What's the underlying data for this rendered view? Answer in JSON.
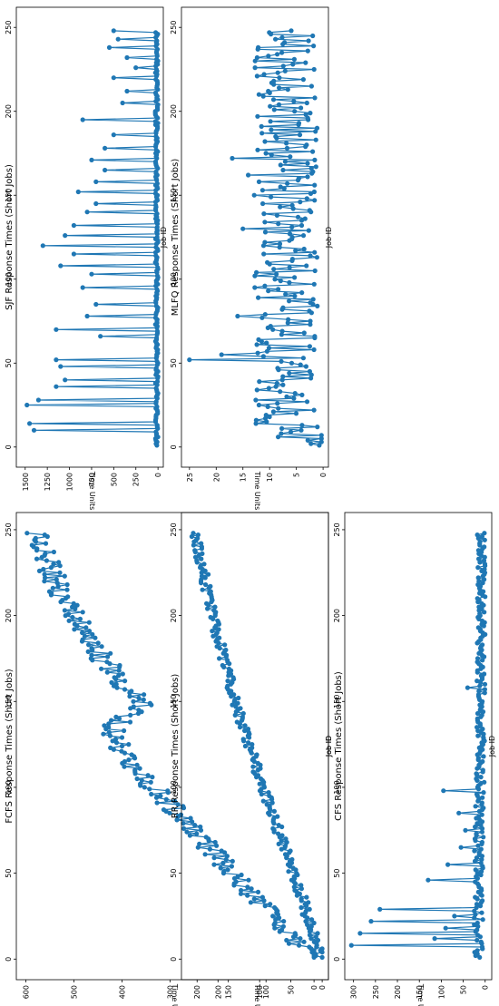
{
  "chart_data": [
    {
      "id": "fcfs",
      "type": "line",
      "title": "FCFS Response Times (Short Jobs)",
      "xlabel": "Job ID",
      "ylabel": "Time Units",
      "xlim": [
        -12,
        260
      ],
      "ylim": [
        -30,
        620
      ],
      "xticks": [
        0,
        50,
        100,
        150,
        200,
        250
      ],
      "yticks": [
        0,
        100,
        200,
        300,
        400,
        500,
        600
      ],
      "marker": "circle",
      "color": "#1f77b4",
      "profile": [
        [
          1,
          5
        ],
        [
          20,
          75
        ],
        [
          50,
          170
        ],
        [
          90,
          300
        ],
        [
          120,
          400
        ],
        [
          135,
          420
        ],
        [
          148,
          360
        ],
        [
          175,
          440
        ],
        [
          205,
          510
        ],
        [
          230,
          555
        ],
        [
          248,
          575
        ]
      ],
      "noise": 25,
      "series": [
        {
          "values": []
        }
      ]
    },
    {
      "id": "rr",
      "type": "line",
      "title": "RR Response Times (Short Jobs)",
      "xlabel": "Job ID",
      "ylabel": "Time Units",
      "xlim": [
        -12,
        260
      ],
      "ylim": [
        -10,
        225
      ],
      "xticks": [
        0,
        50,
        100,
        150,
        200,
        250
      ],
      "yticks": [
        0,
        50,
        100,
        150,
        200
      ],
      "marker": "circle",
      "color": "#1f77b4",
      "profile": [
        [
          1,
          2
        ],
        [
          50,
          45
        ],
        [
          100,
          95
        ],
        [
          150,
          140
        ],
        [
          200,
          175
        ],
        [
          248,
          205
        ]
      ],
      "noise": 8,
      "series": [
        {
          "values": []
        }
      ]
    },
    {
      "id": "cfs",
      "type": "line",
      "title": "CFS Response Times (Short Jobs)",
      "xlabel": "Job ID",
      "ylabel": "Time Units",
      "xlim": [
        -12,
        260
      ],
      "ylim": [
        -15,
        320
      ],
      "xticks": [
        0,
        50,
        100,
        150,
        200,
        250
      ],
      "yticks": [
        0,
        50,
        100,
        150,
        200,
        250,
        300
      ],
      "marker": "circle",
      "color": "#1f77b4",
      "profile": [
        [
          1,
          15
        ],
        [
          60,
          15
        ],
        [
          120,
          10
        ],
        [
          248,
          8
        ]
      ],
      "noise": 10,
      "spikes": [
        [
          8,
          305
        ],
        [
          15,
          285
        ],
        [
          22,
          260
        ],
        [
          29,
          240
        ],
        [
          12,
          115
        ],
        [
          18,
          90
        ],
        [
          25,
          70
        ],
        [
          46,
          130
        ],
        [
          55,
          85
        ],
        [
          65,
          55
        ],
        [
          75,
          45
        ],
        [
          98,
          95
        ],
        [
          158,
          40
        ],
        [
          85,
          60
        ]
      ],
      "series": [
        {
          "values": []
        }
      ]
    },
    {
      "id": "sjf",
      "type": "line",
      "title": "SJF Response Times (Short Jobs)",
      "xlabel": "Job ID",
      "ylabel": "Time Units",
      "xlim": [
        -12,
        262
      ],
      "ylim": [
        -60,
        1600
      ],
      "xticks": [
        0,
        50,
        100,
        150,
        200,
        250
      ],
      "yticks": [
        0,
        250,
        500,
        750,
        1000,
        1250,
        1500
      ],
      "marker": "circle",
      "color": "#1f77b4",
      "profile": [
        [
          1,
          15
        ],
        [
          248,
          15
        ]
      ],
      "noise": 15,
      "spikes": [
        [
          10,
          1400
        ],
        [
          14,
          1450
        ],
        [
          25,
          1480
        ],
        [
          28,
          1350
        ],
        [
          36,
          1150
        ],
        [
          40,
          1050
        ],
        [
          48,
          1100
        ],
        [
          52,
          1150
        ],
        [
          66,
          650
        ],
        [
          70,
          1150
        ],
        [
          78,
          800
        ],
        [
          85,
          700
        ],
        [
          95,
          850
        ],
        [
          103,
          750
        ],
        [
          108,
          1100
        ],
        [
          115,
          950
        ],
        [
          120,
          1300
        ],
        [
          126,
          1050
        ],
        [
          132,
          950
        ],
        [
          140,
          800
        ],
        [
          145,
          700
        ],
        [
          152,
          900
        ],
        [
          158,
          700
        ],
        [
          165,
          600
        ],
        [
          171,
          750
        ],
        [
          178,
          600
        ],
        [
          186,
          500
        ],
        [
          195,
          850
        ],
        [
          205,
          400
        ],
        [
          212,
          350
        ],
        [
          220,
          500
        ],
        [
          226,
          250
        ],
        [
          232,
          350
        ],
        [
          238,
          550
        ],
        [
          243,
          450
        ],
        [
          248,
          500
        ]
      ],
      "series": [
        {
          "values": []
        }
      ]
    },
    {
      "id": "mlfq",
      "type": "line",
      "title": "MLFQ Response Times (Short Jobs)",
      "xlabel": "Job ID",
      "ylabel": "Time Units",
      "xlim": [
        -12,
        262
      ],
      "ylim": [
        -1,
        26.5
      ],
      "xticks": [
        0,
        50,
        100,
        150,
        200,
        250
      ],
      "yticks": [
        0,
        5,
        10,
        15,
        20,
        25
      ],
      "marker": "circle",
      "color": "#1f77b4",
      "profile": [
        [
          1,
          1
        ],
        [
          5,
          1
        ],
        [
          8,
          7
        ],
        [
          248,
          7
        ]
      ],
      "noise": 6,
      "spikes": [
        [
          52,
          25
        ],
        [
          55,
          19
        ],
        [
          78,
          16
        ],
        [
          130,
          17
        ],
        [
          172,
          17
        ],
        [
          162,
          14
        ],
        [
          130,
          15
        ],
        [
          210,
          12
        ]
      ],
      "series": [
        {
          "values": []
        }
      ]
    }
  ]
}
